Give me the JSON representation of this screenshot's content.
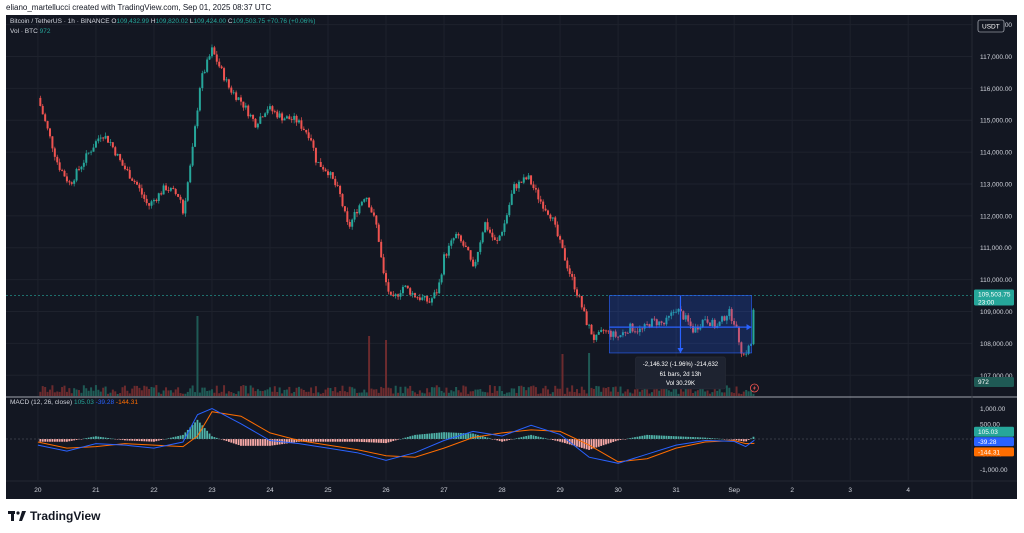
{
  "credit": "eliano_martellucci created with TradingView.com, Sep 01, 2025 08:37 UTC",
  "brand": {
    "name": "TradingView"
  },
  "header": {
    "symbol": "Bitcoin / TetherUS · 1h · BINANCE",
    "o_label": "O",
    "o_value": "109,432.99",
    "h_label": "H",
    "h_value": "109,820.02",
    "l_label": "L",
    "l_value": "109,424.00",
    "c_label": "C",
    "c_value": "109,503.75",
    "change": "+70.76 (+0.06%)",
    "vol_label": "Vol · BTC",
    "vol_value": "972"
  },
  "macd_legend": {
    "label": "MACD (12, 26, close)",
    "hist": "105.03",
    "macd": "-39.28",
    "signal": "-144.31"
  },
  "currency_badge": "USDT",
  "colors": {
    "up": "#26a69a",
    "down": "#ef5350",
    "macd": "#2962ff",
    "signal": "#ff6d00",
    "range": "#2962ff",
    "bg": "#131722"
  },
  "chart_data": [
    {
      "type": "candlestick",
      "title": "Bitcoin / TetherUS · 1h · BINANCE",
      "interval": "1h",
      "y_ticks": [
        "118,000.00",
        "117,000.00",
        "116,000.00",
        "115,000.00",
        "114,000.00",
        "113,000.00",
        "112,000.00",
        "111,000.00",
        "110,000.00",
        "109,000.00",
        "108,000.00",
        "107,000.00"
      ],
      "y_tick_values": [
        118000,
        117000,
        116000,
        115000,
        114000,
        113000,
        112000,
        111000,
        110000,
        109000,
        108000,
        107000
      ],
      "ylim": [
        106350,
        118300
      ],
      "x_ticks": [
        "20",
        "21",
        "22",
        "23",
        "24",
        "25",
        "26",
        "27",
        "28",
        "29",
        "30",
        "31",
        "Sep",
        "2",
        "3",
        "4"
      ],
      "x_tick_days": [
        0,
        1,
        2,
        3,
        4,
        5,
        6,
        7,
        8,
        9,
        10,
        11,
        12,
        13,
        14,
        15
      ],
      "x_range_days": [
        -0.55,
        16.1
      ],
      "close_path": [
        [
          0.0,
          115700
        ],
        [
          0.15,
          114800
        ],
        [
          0.35,
          113600
        ],
        [
          0.55,
          113000
        ],
        [
          0.85,
          113900
        ],
        [
          1.1,
          114600
        ],
        [
          1.25,
          114300
        ],
        [
          1.45,
          113600
        ],
        [
          1.7,
          113000
        ],
        [
          1.9,
          112300
        ],
        [
          2.2,
          112900
        ],
        [
          2.45,
          112600
        ],
        [
          2.5,
          112100
        ],
        [
          2.65,
          113800
        ],
        [
          2.8,
          116200
        ],
        [
          3.0,
          117200
        ],
        [
          3.1,
          116800
        ],
        [
          3.3,
          116000
        ],
        [
          3.5,
          115600
        ],
        [
          3.75,
          114900
        ],
        [
          3.95,
          115400
        ],
        [
          4.2,
          115100
        ],
        [
          4.45,
          115000
        ],
        [
          4.7,
          114500
        ],
        [
          4.8,
          113700
        ],
        [
          5.0,
          113400
        ],
        [
          5.2,
          112700
        ],
        [
          5.35,
          111600
        ],
        [
          5.5,
          112200
        ],
        [
          5.65,
          112700
        ],
        [
          5.85,
          111600
        ],
        [
          5.95,
          110200
        ],
        [
          6.1,
          109300
        ],
        [
          6.3,
          109800
        ],
        [
          6.5,
          109500
        ],
        [
          6.75,
          109300
        ],
        [
          6.9,
          109700
        ],
        [
          7.0,
          110700
        ],
        [
          7.2,
          111400
        ],
        [
          7.4,
          110900
        ],
        [
          7.5,
          110300
        ],
        [
          7.7,
          111800
        ],
        [
          7.9,
          111100
        ],
        [
          8.05,
          111800
        ],
        [
          8.2,
          112900
        ],
        [
          8.45,
          113200
        ],
        [
          8.65,
          112500
        ],
        [
          8.85,
          112000
        ],
        [
          8.95,
          111400
        ],
        [
          9.15,
          110300
        ],
        [
          9.35,
          109300
        ],
        [
          9.45,
          108700
        ],
        [
          9.6,
          108100
        ],
        [
          9.75,
          108400
        ],
        [
          10.0,
          108200
        ],
        [
          10.2,
          108500
        ],
        [
          10.4,
          108400
        ],
        [
          10.6,
          108700
        ],
        [
          10.8,
          108600
        ],
        [
          11.0,
          109100
        ],
        [
          11.15,
          108800
        ],
        [
          11.3,
          108400
        ],
        [
          11.5,
          108800
        ],
        [
          11.7,
          108500
        ],
        [
          11.9,
          109000
        ],
        [
          12.0,
          108700
        ],
        [
          12.1,
          108000
        ],
        [
          12.15,
          107600
        ],
        [
          12.3,
          108000
        ],
        [
          12.35,
          109500
        ]
      ],
      "last_price": {
        "value": 109503.75,
        "label": "109,503.75",
        "countdown": "23:00"
      },
      "range_measure": {
        "start_day": 9.85,
        "end_day": 12.3,
        "top": 109500,
        "bottom": 107700,
        "line_1": "-2,146.32 (-1.96%) -214,632",
        "line_2": "61 bars, 2d 13h",
        "line_3": "Vol 30.29K"
      }
    },
    {
      "type": "bar",
      "title": "Vol · BTC",
      "last_value": "972",
      "spikes": [
        [
          2.75,
          6.0
        ],
        [
          5.7,
          4.0
        ],
        [
          6.0,
          3.6
        ],
        [
          9.05,
          2.2
        ],
        [
          9.5,
          2.3
        ]
      ]
    },
    {
      "type": "line",
      "title": "MACD (12, 26, close)",
      "y_ticks": [
        "1,000.00",
        "500.00",
        "-500.00",
        "-1,000.00"
      ],
      "y_tick_values": [
        1000,
        500,
        -500,
        -1000
      ],
      "ylim": [
        -1350,
        1350
      ],
      "series": [
        {
          "name": "MACD",
          "value": "-39.28"
        },
        {
          "name": "Signal",
          "value": "-144.31"
        },
        {
          "name": "Histogram",
          "value": "105.03"
        }
      ],
      "macd_path": [
        [
          0.0,
          -200
        ],
        [
          0.5,
          -400
        ],
        [
          1.0,
          -150
        ],
        [
          1.5,
          -200
        ],
        [
          2.0,
          -300
        ],
        [
          2.5,
          -100
        ],
        [
          2.75,
          800
        ],
        [
          3.0,
          1000
        ],
        [
          3.5,
          500
        ],
        [
          4.0,
          -50
        ],
        [
          4.5,
          -150
        ],
        [
          5.0,
          -300
        ],
        [
          5.5,
          -450
        ],
        [
          6.0,
          -700
        ],
        [
          6.5,
          -450
        ],
        [
          7.0,
          -50
        ],
        [
          7.5,
          250
        ],
        [
          8.0,
          100
        ],
        [
          8.5,
          450
        ],
        [
          9.0,
          150
        ],
        [
          9.5,
          -600
        ],
        [
          10.0,
          -800
        ],
        [
          10.5,
          -500
        ],
        [
          11.0,
          -200
        ],
        [
          11.5,
          -50
        ],
        [
          12.0,
          -80
        ],
        [
          12.2,
          -250
        ],
        [
          12.35,
          -39
        ]
      ],
      "signal_path": [
        [
          0.0,
          -100
        ],
        [
          0.5,
          -300
        ],
        [
          1.0,
          -250
        ],
        [
          1.5,
          -150
        ],
        [
          2.0,
          -200
        ],
        [
          2.5,
          -250
        ],
        [
          2.75,
          100
        ],
        [
          3.0,
          900
        ],
        [
          3.5,
          750
        ],
        [
          4.0,
          200
        ],
        [
          4.5,
          -50
        ],
        [
          5.0,
          -200
        ],
        [
          5.5,
          -350
        ],
        [
          6.0,
          -550
        ],
        [
          6.5,
          -600
        ],
        [
          7.0,
          -300
        ],
        [
          7.5,
          50
        ],
        [
          8.0,
          200
        ],
        [
          8.5,
          300
        ],
        [
          9.0,
          250
        ],
        [
          9.5,
          -200
        ],
        [
          10.0,
          -750
        ],
        [
          10.5,
          -650
        ],
        [
          11.0,
          -300
        ],
        [
          11.5,
          -100
        ],
        [
          12.0,
          -50
        ],
        [
          12.2,
          -150
        ],
        [
          12.35,
          -144
        ]
      ]
    }
  ]
}
